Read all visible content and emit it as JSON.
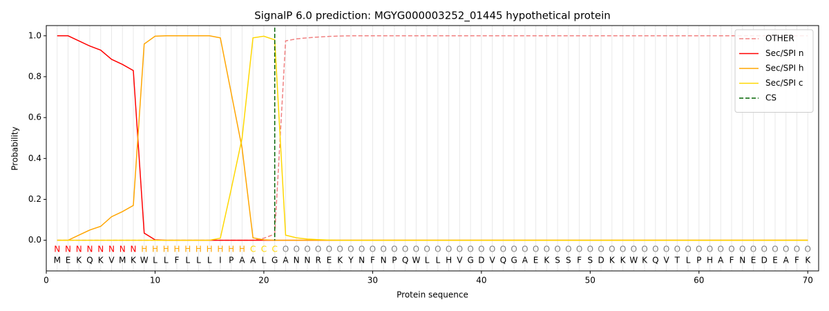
{
  "chart_data": {
    "type": "line",
    "title": "SignalP 6.0 prediction: MGYG000003252_01445 hypothetical protein",
    "x_label": "Protein sequence",
    "y_label": "Probability",
    "xlim": [
      0,
      71
    ],
    "ylim": [
      -0.15,
      1.05
    ],
    "xticks": [
      0,
      10,
      20,
      30,
      40,
      50,
      60,
      70
    ],
    "yticks": [
      {
        "value": 0,
        "label": "0.0"
      },
      {
        "value": 0.2,
        "label": "0.2"
      },
      {
        "value": 0.4,
        "label": "0.4"
      },
      {
        "value": 0.6,
        "label": "0.6"
      },
      {
        "value": 0.8,
        "label": "0.8"
      },
      {
        "value": 1,
        "label": "1.0"
      }
    ],
    "grid": true,
    "legend": "upper right",
    "x": [
      1,
      2,
      3,
      4,
      5,
      6,
      7,
      8,
      9,
      10,
      11,
      12,
      13,
      14,
      15,
      16,
      17,
      18,
      19,
      20,
      21,
      22,
      23,
      24,
      25,
      26,
      27,
      28,
      29,
      30,
      31,
      32,
      33,
      34,
      35,
      36,
      37,
      38,
      39,
      40,
      41,
      42,
      43,
      44,
      45,
      46,
      47,
      48,
      49,
      50,
      51,
      52,
      53,
      54,
      55,
      56,
      57,
      58,
      59,
      60,
      61,
      62,
      63,
      64,
      65,
      66,
      67,
      68,
      69,
      70
    ],
    "residues": [
      "M",
      "E",
      "K",
      "Q",
      "K",
      "V",
      "M",
      "K",
      "W",
      "L",
      "L",
      "F",
      "L",
      "L",
      "L",
      "I",
      "P",
      "A",
      "A",
      "L",
      "G",
      "A",
      "N",
      "N",
      "R",
      "E",
      "K",
      "Y",
      "N",
      "F",
      "N",
      "P",
      "Q",
      "W",
      "L",
      "L",
      "H",
      "V",
      "G",
      "D",
      "V",
      "Q",
      "G",
      "A",
      "E",
      "K",
      "S",
      "S",
      "F",
      "S",
      "D",
      "K",
      "K",
      "W",
      "K",
      "Q",
      "V",
      "T",
      "L",
      "P",
      "H",
      "A",
      "F",
      "N",
      "E",
      "D",
      "E",
      "A",
      "F",
      "K"
    ],
    "regions": [
      "N",
      "N",
      "N",
      "N",
      "N",
      "N",
      "N",
      "N",
      "H",
      "H",
      "H",
      "H",
      "H",
      "H",
      "H",
      "H",
      "H",
      "H",
      "C",
      "C",
      "C",
      "O",
      "O",
      "O",
      "O",
      "O",
      "O",
      "O",
      "O",
      "O",
      "O",
      "O",
      "O",
      "O",
      "O",
      "O",
      "O",
      "O",
      "O",
      "O",
      "O",
      "O",
      "O",
      "O",
      "O",
      "O",
      "O",
      "O",
      "O",
      "O",
      "O",
      "O",
      "O",
      "O",
      "O",
      "O",
      "O",
      "O",
      "O",
      "O",
      "O",
      "O",
      "O",
      "O",
      "O",
      "O",
      "O",
      "O",
      "O",
      "O"
    ],
    "region_colors": {
      "N": "#ff0000",
      "H": "#ffa500",
      "C": "#ffd700",
      "O": "#808080"
    },
    "series": [
      {
        "name": "OTHER",
        "color": "#f08080",
        "dashed": true,
        "values": [
          0,
          0,
          0,
          0,
          0,
          0,
          0,
          0,
          0,
          0,
          0,
          0,
          0,
          0,
          0,
          0,
          0,
          0,
          0,
          0.01,
          0.03,
          0.975,
          0.985,
          0.99,
          0.994,
          0.997,
          0.999,
          1,
          1,
          1,
          1,
          1,
          1,
          1,
          1,
          1,
          1,
          1,
          1,
          1,
          1,
          1,
          1,
          1,
          1,
          1,
          1,
          1,
          1,
          1,
          1,
          1,
          1,
          1,
          1,
          1,
          1,
          1,
          1,
          1,
          1,
          1,
          1,
          1,
          1,
          1,
          1,
          1,
          1,
          1
        ]
      },
      {
        "name": "Sec/SPI n",
        "color": "#ff0000",
        "values": [
          1,
          1,
          0.975,
          0.95,
          0.93,
          0.885,
          0.86,
          0.83,
          0.035,
          0.002,
          0,
          0,
          0,
          0,
          0,
          0,
          0,
          0,
          0,
          0,
          0,
          0,
          0,
          0,
          0,
          0,
          0,
          0,
          0,
          0,
          0,
          0,
          0,
          0,
          0,
          0,
          0,
          0,
          0,
          0,
          0,
          0,
          0,
          0,
          0,
          0,
          0,
          0,
          0,
          0,
          0,
          0,
          0,
          0,
          0,
          0,
          0,
          0,
          0,
          0,
          0,
          0,
          0,
          0,
          0,
          0,
          0,
          0,
          0,
          0
        ]
      },
      {
        "name": "Sec/SPI h",
        "color": "#ffa500",
        "values": [
          0,
          0,
          0.025,
          0.05,
          0.068,
          0.115,
          0.14,
          0.17,
          0.96,
          0.998,
          1,
          1,
          1,
          1,
          1,
          0.99,
          0.72,
          0.45,
          0.012,
          0.002,
          0,
          0,
          0,
          0,
          0,
          0,
          0,
          0,
          0,
          0,
          0,
          0,
          0,
          0,
          0,
          0,
          0,
          0,
          0,
          0,
          0,
          0,
          0,
          0,
          0,
          0,
          0,
          0,
          0,
          0,
          0,
          0,
          0,
          0,
          0,
          0,
          0,
          0,
          0,
          0,
          0,
          0,
          0,
          0,
          0,
          0,
          0,
          0,
          0,
          0
        ]
      },
      {
        "name": "Sec/SPI c",
        "color": "#ffd700",
        "values": [
          0,
          0,
          0,
          0,
          0,
          0,
          0,
          0,
          0,
          0,
          0,
          0,
          0,
          0,
          0,
          0.01,
          0.25,
          0.5,
          0.99,
          0.998,
          0.98,
          0.025,
          0.012,
          0.006,
          0.003,
          0.001,
          0,
          0,
          0,
          0,
          0,
          0,
          0,
          0,
          0,
          0,
          0,
          0,
          0,
          0,
          0,
          0,
          0,
          0,
          0,
          0,
          0,
          0,
          0,
          0,
          0,
          0,
          0,
          0,
          0,
          0,
          0,
          0,
          0,
          0,
          0,
          0,
          0,
          0,
          0,
          0,
          0,
          0,
          0,
          0
        ]
      }
    ],
    "markers": [
      {
        "name": "CS",
        "color": "#006400",
        "x": 21
      }
    ]
  }
}
